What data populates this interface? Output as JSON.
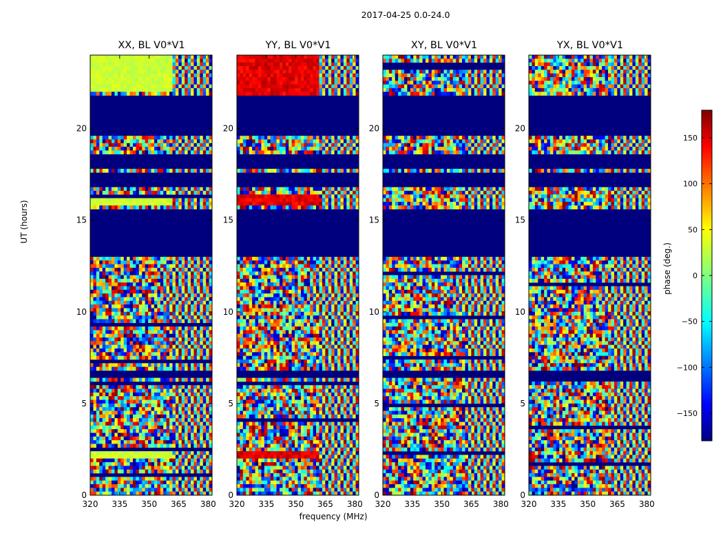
{
  "chart_data": {
    "type": "heatmap",
    "title": "2017-04-25 0.0-24.0",
    "xlabel": "frequency (MHz)",
    "ylabel": "UT (hours)",
    "xlim": [
      320,
      382
    ],
    "ylim": [
      0,
      24
    ],
    "x_ticks": [
      320,
      335,
      350,
      365,
      380
    ],
    "x_tick_labels": [
      "320",
      "335",
      "350",
      "365",
      "380"
    ],
    "y_ticks": [
      0,
      5,
      10,
      15,
      20
    ],
    "y_tick_labels": [
      "0",
      "5",
      "10",
      "15",
      "20"
    ],
    "panels": [
      {
        "title": "XX, BL V0*V1",
        "mode": "xx"
      },
      {
        "title": "YY, BL V0*V1",
        "mode": "yy"
      },
      {
        "title": "XY, BL V0*V1",
        "mode": "xy"
      },
      {
        "title": "YX, BL V0*V1",
        "mode": "yx"
      }
    ],
    "masked_ut_ranges": [
      [
        12.9,
        15.6
      ],
      [
        16.9,
        17.6
      ],
      [
        17.9,
        18.5
      ],
      [
        19.6,
        21.7
      ],
      [
        6.4,
        6.7
      ]
    ],
    "colorbar": {
      "label": "phase (deg.)",
      "range": [
        -180,
        180
      ],
      "ticks": [
        -150,
        -100,
        -50,
        0,
        50,
        100,
        150
      ],
      "tick_labels": [
        "−150",
        "−100",
        "−50",
        "0",
        "50",
        "100",
        "150"
      ],
      "colormap": "jet"
    },
    "grid": false
  }
}
